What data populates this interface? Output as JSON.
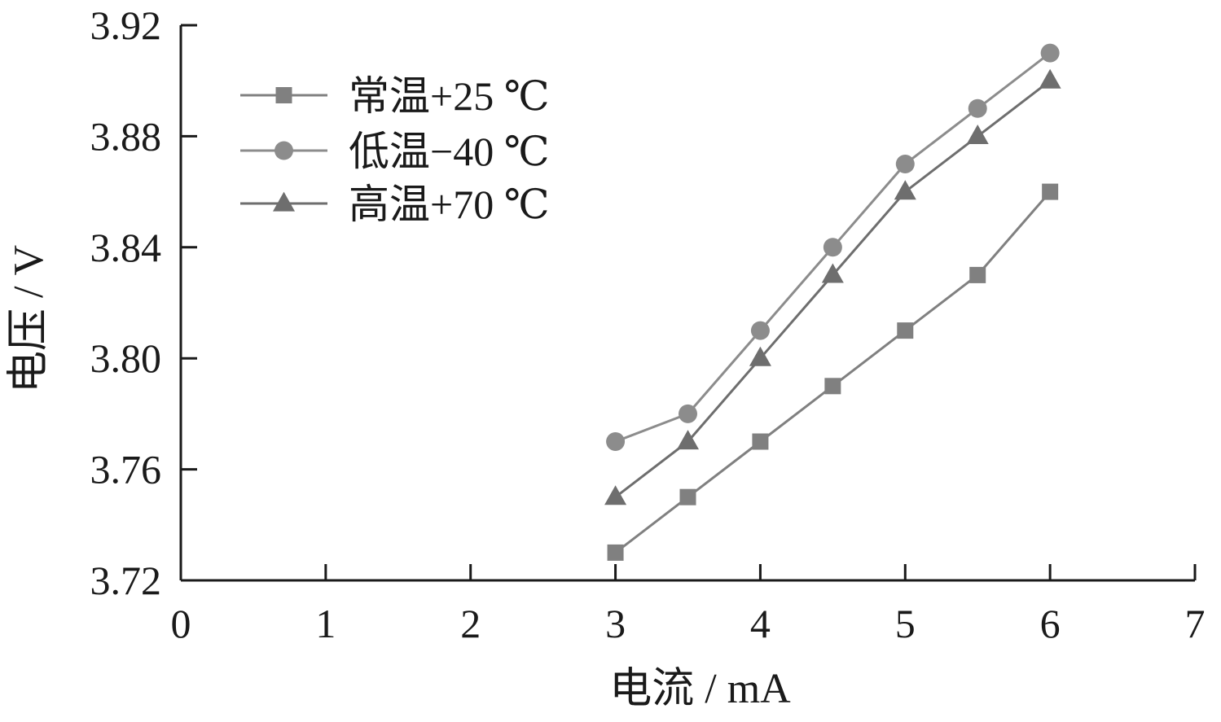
{
  "chart_data": {
    "type": "line",
    "title": "",
    "xlabel": "电流 / mA",
    "ylabel": "电压 / V",
    "xlim": [
      0,
      7
    ],
    "ylim": [
      3.72,
      3.92
    ],
    "x_ticks": [
      "0",
      "1",
      "2",
      "3",
      "4",
      "5",
      "6",
      "7"
    ],
    "y_ticks": [
      "3.72",
      "3.76",
      "3.80",
      "3.84",
      "3.88",
      "3.92"
    ],
    "x": [
      3,
      3.5,
      4,
      4.5,
      5,
      5.5,
      6
    ],
    "grid": false,
    "legend_position": "top-left",
    "series": [
      {
        "name": "常温+25 ℃",
        "marker": "square",
        "color": "#808080",
        "values": [
          3.73,
          3.75,
          3.77,
          3.79,
          3.81,
          3.83,
          3.86
        ]
      },
      {
        "name": "低温−40 ℃",
        "marker": "circle",
        "color": "#8c8c8c",
        "values": [
          3.77,
          3.78,
          3.81,
          3.84,
          3.87,
          3.89,
          3.91
        ]
      },
      {
        "name": "高温+70 ℃",
        "marker": "triangle",
        "color": "#6e6e6e",
        "values": [
          3.75,
          3.77,
          3.8,
          3.83,
          3.86,
          3.88,
          3.9
        ]
      }
    ]
  }
}
